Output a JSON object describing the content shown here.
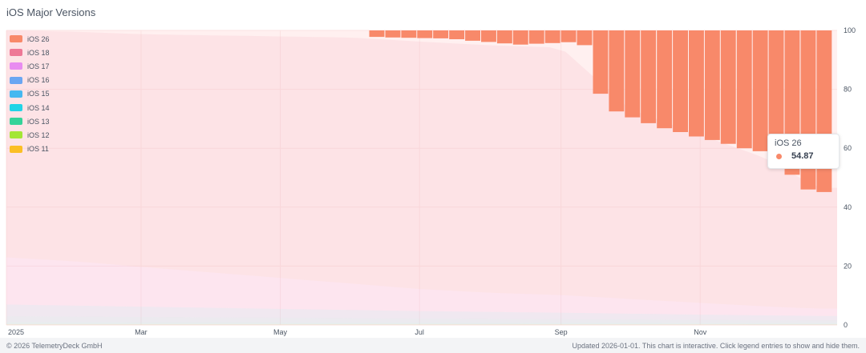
{
  "title": "iOS Major Versions",
  "colors": {
    "plot_bg": "#fff0f0",
    "grid": "#fbe2e2"
  },
  "legend": [
    {
      "label": "iOS 26",
      "color": "#f8896a"
    },
    {
      "label": "iOS 18",
      "color": "#ee7896"
    },
    {
      "label": "iOS 17",
      "color": "#e88cf0"
    },
    {
      "label": "iOS 16",
      "color": "#6aa6f2"
    },
    {
      "label": "iOS 15",
      "color": "#45b8f0"
    },
    {
      "label": "iOS 14",
      "color": "#22d4e6"
    },
    {
      "label": "iOS 13",
      "color": "#34d399"
    },
    {
      "label": "iOS 12",
      "color": "#a3e635"
    },
    {
      "label": "iOS 11",
      "color": "#fbbf24"
    }
  ],
  "tooltip": {
    "series": "iOS 26",
    "value": "54.87",
    "color": "#f8896a"
  },
  "footer": {
    "left": "© 2026 TelemetryDeck GmbH",
    "right": "Updated 2026-01-01. This chart is interactive. Click legend entries to show and hide them."
  },
  "chart_data": {
    "type": "area",
    "stacked": true,
    "ylim": [
      0,
      100
    ],
    "yticks": [
      0,
      20,
      40,
      60,
      80,
      100
    ],
    "y_axis_position": "right",
    "grid": true,
    "legend_position": "top-left",
    "xlim": [
      "2025-01-01",
      "2025-12-31"
    ],
    "xticks": [
      {
        "label": "2025",
        "date": "2025-01-01"
      },
      {
        "label": "Mar",
        "date": "2025-03-01"
      },
      {
        "label": "May",
        "date": "2025-05-01"
      },
      {
        "label": "Jul",
        "date": "2025-07-01"
      },
      {
        "label": "Sep",
        "date": "2025-09-01"
      },
      {
        "label": "Nov",
        "date": "2025-11-01"
      }
    ],
    "series": [
      {
        "name": "iOS 26",
        "color": "#f8896a",
        "points": [
          [
            "2025-06-09",
            2.2
          ],
          [
            "2025-06-16",
            2.4
          ],
          [
            "2025-06-23",
            2.5
          ],
          [
            "2025-06-30",
            2.6
          ],
          [
            "2025-07-07",
            2.7
          ],
          [
            "2025-07-14",
            3.0
          ],
          [
            "2025-07-21",
            3.5
          ],
          [
            "2025-07-28",
            3.9
          ],
          [
            "2025-08-04",
            4.4
          ],
          [
            "2025-08-11",
            4.8
          ],
          [
            "2025-08-18",
            4.5
          ],
          [
            "2025-08-25",
            4.3
          ],
          [
            "2025-09-01",
            4.0
          ],
          [
            "2025-09-08",
            5.0
          ],
          [
            "2025-09-15",
            21.5
          ],
          [
            "2025-09-22",
            27.5
          ],
          [
            "2025-09-29",
            29.5
          ],
          [
            "2025-10-06",
            31.5
          ],
          [
            "2025-10-13",
            33.2
          ],
          [
            "2025-10-20",
            34.5
          ],
          [
            "2025-10-27",
            36.0
          ],
          [
            "2025-11-03",
            37.2
          ],
          [
            "2025-11-10",
            38.5
          ],
          [
            "2025-11-17",
            40.0
          ],
          [
            "2025-11-24",
            41.0
          ],
          [
            "2025-12-01",
            45.5
          ],
          [
            "2025-12-08",
            49.0
          ],
          [
            "2025-12-15",
            54.0
          ],
          [
            "2025-12-22",
            54.87
          ]
        ]
      },
      {
        "name": "iOS 18",
        "color": "#ee7896",
        "points": [
          [
            "2025-01-01",
            77.0
          ],
          [
            "2025-02-01",
            78.0
          ],
          [
            "2025-03-01",
            79.0
          ],
          [
            "2025-04-01",
            80.5
          ],
          [
            "2025-05-01",
            82.0
          ],
          [
            "2025-06-01",
            83.5
          ],
          [
            "2025-07-01",
            84.0
          ],
          [
            "2025-08-01",
            84.0
          ],
          [
            "2025-09-01",
            84.0
          ],
          [
            "2025-10-01",
            64.5
          ],
          [
            "2025-11-01",
            57.0
          ],
          [
            "2025-12-01",
            50.0
          ],
          [
            "2025-12-22",
            41.0
          ]
        ]
      },
      {
        "name": "iOS 17",
        "color": "#e88cf0",
        "points": [
          [
            "2025-01-01",
            16.0
          ],
          [
            "2025-02-01",
            15.0
          ],
          [
            "2025-03-01",
            13.5
          ],
          [
            "2025-04-01",
            12.0
          ],
          [
            "2025-05-01",
            10.5
          ],
          [
            "2025-06-01",
            9.0
          ],
          [
            "2025-07-01",
            7.5
          ],
          [
            "2025-08-01",
            6.5
          ],
          [
            "2025-09-01",
            6.0
          ],
          [
            "2025-10-01",
            5.0
          ],
          [
            "2025-11-01",
            4.0
          ],
          [
            "2025-12-01",
            3.0
          ],
          [
            "2025-12-22",
            2.5
          ]
        ]
      },
      {
        "name": "iOS 16",
        "color": "#6aa6f2",
        "points": [
          [
            "2025-01-01",
            4.0
          ],
          [
            "2025-03-01",
            3.5
          ],
          [
            "2025-05-01",
            3.0
          ],
          [
            "2025-07-01",
            2.5
          ],
          [
            "2025-09-01",
            2.2
          ],
          [
            "2025-11-01",
            1.8
          ],
          [
            "2025-12-22",
            1.5
          ]
        ]
      },
      {
        "name": "iOS 15",
        "color": "#45b8f0",
        "points": [
          [
            "2025-01-01",
            2.0
          ],
          [
            "2025-03-01",
            1.8
          ],
          [
            "2025-05-01",
            1.6
          ],
          [
            "2025-07-01",
            1.4
          ],
          [
            "2025-09-01",
            1.2
          ],
          [
            "2025-11-01",
            1.0
          ],
          [
            "2025-12-22",
            0.9
          ]
        ]
      },
      {
        "name": "iOS 14",
        "color": "#22d4e6",
        "points": [
          [
            "2025-01-01",
            0.6
          ],
          [
            "2025-06-01",
            0.5
          ],
          [
            "2025-12-22",
            0.4
          ]
        ]
      },
      {
        "name": "iOS 13",
        "color": "#34d399",
        "points": [
          [
            "2025-01-01",
            0.2
          ],
          [
            "2025-06-01",
            0.2
          ],
          [
            "2025-12-22",
            0.15
          ]
        ]
      },
      {
        "name": "iOS 12",
        "color": "#a3e635",
        "points": [
          [
            "2025-01-01",
            0.1
          ],
          [
            "2025-12-22",
            0.08
          ]
        ]
      },
      {
        "name": "iOS 11",
        "color": "#fbbf24",
        "points": [
          [
            "2025-01-01",
            0.05
          ],
          [
            "2025-12-22",
            0.04
          ]
        ]
      }
    ]
  }
}
